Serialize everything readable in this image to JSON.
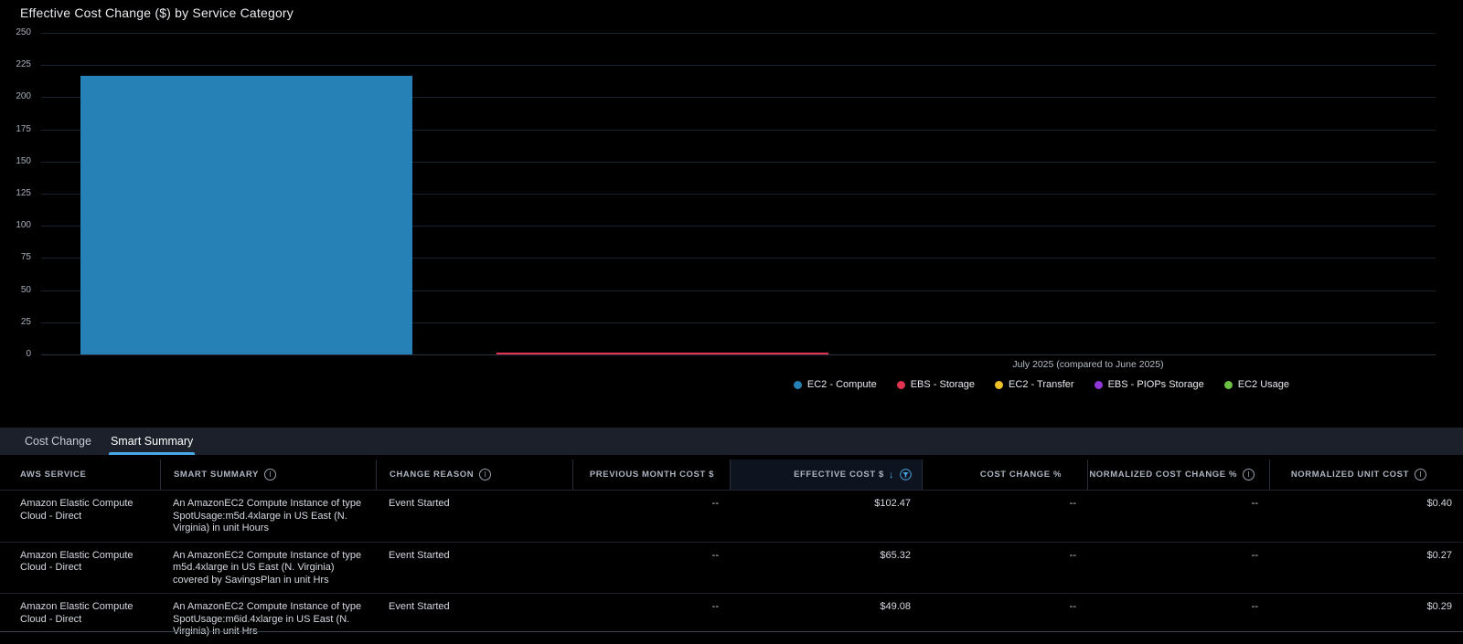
{
  "colors": {
    "accent_blue": "#49a8e8",
    "background": "#000000",
    "tabbar_background": "#1b202a"
  },
  "chart_data": {
    "type": "bar",
    "title": "Effective Cost Change ($) by Service Category",
    "categories": [
      "July 2025 (compared to June 2025)"
    ],
    "series": [
      {
        "name": "EC2 - Compute",
        "color": "#2681b6",
        "values": [
          216.87
        ]
      },
      {
        "name": "EBS - Storage",
        "color": "#e23350",
        "values": [
          1.5
        ]
      },
      {
        "name": "EC2 - Transfer",
        "color": "#efc02c",
        "values": [
          0
        ]
      },
      {
        "name": "EBS - PIOPs Storage",
        "color": "#9136d9",
        "values": [
          0
        ]
      },
      {
        "name": "EC2 Usage",
        "color": "#6cc042",
        "values": [
          0
        ]
      }
    ],
    "xlabel": "July 2025 (compared to June 2025)",
    "ylabel": "",
    "ylim": [
      0,
      250
    ],
    "yticks": [
      250,
      225,
      200,
      175,
      150,
      125,
      100,
      75,
      50,
      25,
      0
    ],
    "grid": true,
    "legend_position": "bottom-right"
  },
  "tabs": [
    {
      "label": "Cost Change",
      "active": false
    },
    {
      "label": "Smart Summary",
      "active": true
    }
  ],
  "icons": {
    "sort_desc": "↓",
    "info": "i"
  },
  "table": {
    "columns": [
      {
        "label": "AWS SERVICE"
      },
      {
        "label": "SMART SUMMARY",
        "info": true
      },
      {
        "label": "CHANGE REASON",
        "info": true
      },
      {
        "label": "PREVIOUS MONTH COST $"
      },
      {
        "label": "EFFECTIVE COST $",
        "sorted": "desc",
        "filter": true
      },
      {
        "label": "COST CHANGE %"
      },
      {
        "label": "NORMALIZED COST CHANGE %",
        "info": true
      },
      {
        "label": "NORMALIZED UNIT COST",
        "info": true
      }
    ],
    "rows": [
      {
        "aws_service": "Amazon Elastic Compute Cloud - Direct",
        "smart_summary": "An AmazonEC2 Compute Instance of type SpotUsage:m5d.4xlarge in US East (N. Virginia) in unit Hours",
        "change_reason": "Event Started",
        "previous_month_cost": "--",
        "effective_cost": "$102.47",
        "cost_change_pct": "--",
        "normalized_cost_change_pct": "--",
        "normalized_unit_cost": "$0.40"
      },
      {
        "aws_service": "Amazon Elastic Compute Cloud - Direct",
        "smart_summary": "An AmazonEC2 Compute Instance of type m5d.4xlarge in US East (N. Virginia) covered by SavingsPlan in unit Hrs",
        "change_reason": "Event Started",
        "previous_month_cost": "--",
        "effective_cost": "$65.32",
        "cost_change_pct": "--",
        "normalized_cost_change_pct": "--",
        "normalized_unit_cost": "$0.27"
      },
      {
        "aws_service": "Amazon Elastic Compute Cloud - Direct",
        "smart_summary": "An AmazonEC2 Compute Instance of type SpotUsage:m6id.4xlarge in US East (N. Virginia) in unit Hrs",
        "change_reason": "Event Started",
        "previous_month_cost": "--",
        "effective_cost": "$49.08",
        "cost_change_pct": "--",
        "normalized_cost_change_pct": "--",
        "normalized_unit_cost": "$0.29"
      }
    ]
  }
}
